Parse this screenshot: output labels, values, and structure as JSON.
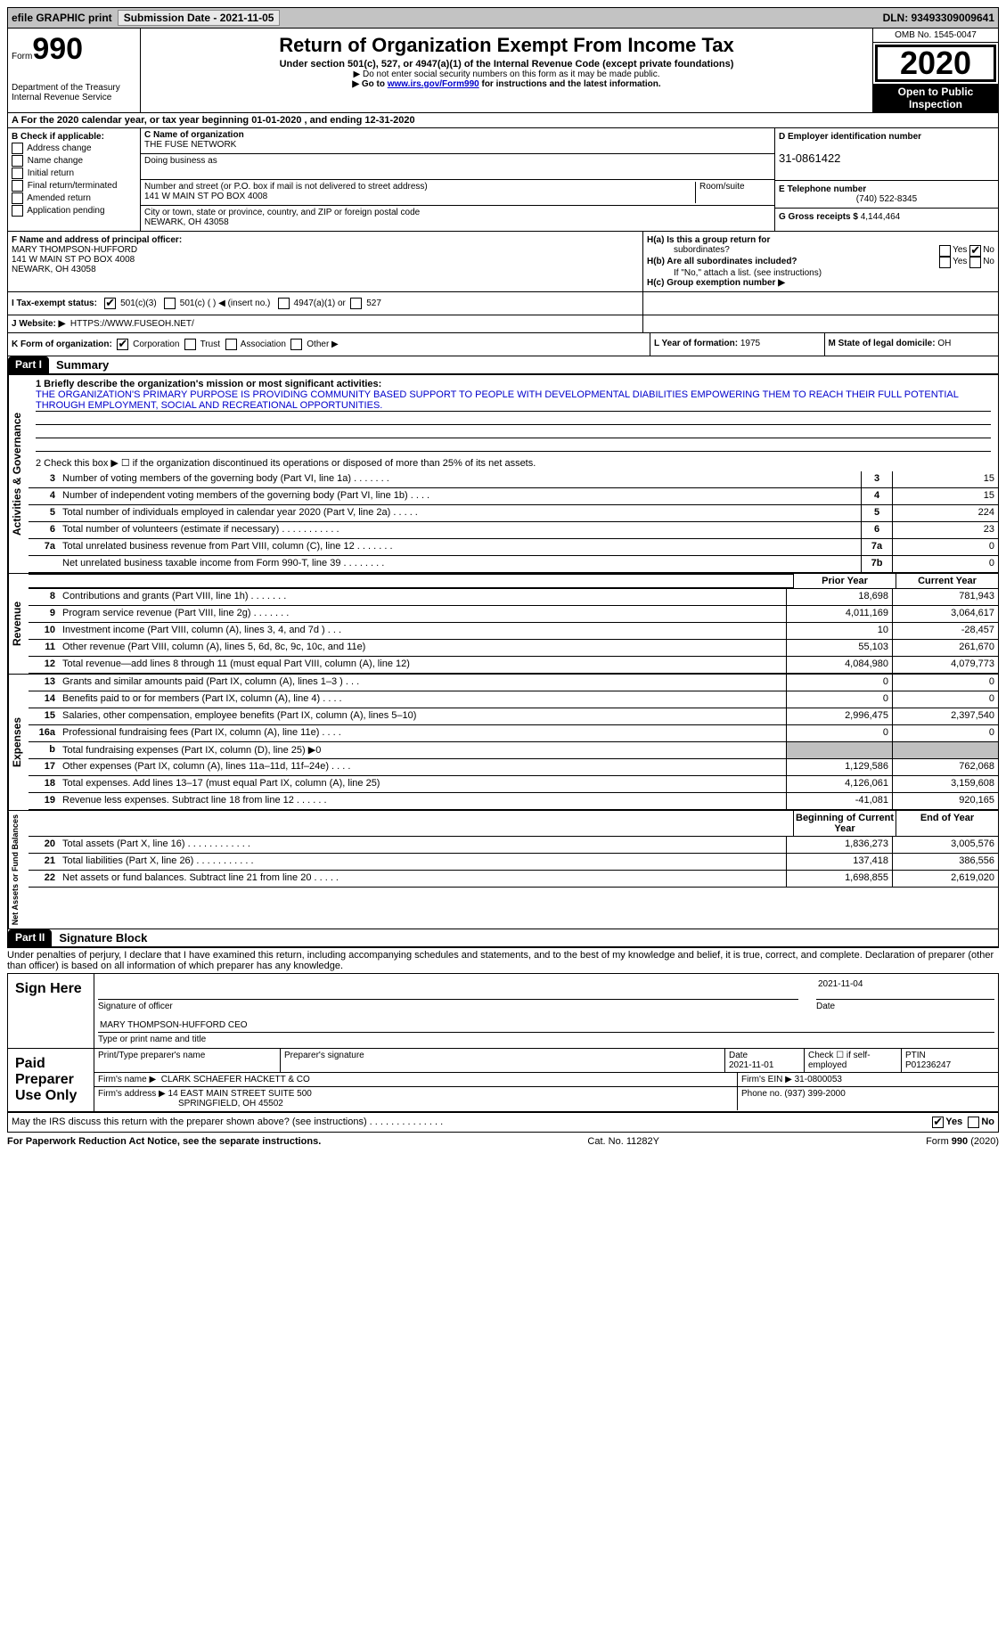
{
  "top_bar": {
    "efile_label": "efile GRAPHIC print",
    "submission_label": "Submission Date - 2021-11-05",
    "dln_label": "DLN: 93493309009641"
  },
  "header": {
    "form_word": "Form",
    "form_number": "990",
    "dept": "Department of the Treasury",
    "irs": "Internal Revenue Service",
    "title": "Return of Organization Exempt From Income Tax",
    "subtitle": "Under section 501(c), 527, or 4947(a)(1) of the Internal Revenue Code (except private foundations)",
    "note1": "▶ Do not enter social security numbers on this form as it may be made public.",
    "note2_prefix": "▶ Go to ",
    "note2_link": "www.irs.gov/Form990",
    "note2_suffix": " for instructions and the latest information.",
    "omb": "OMB No. 1545-0047",
    "year": "2020",
    "inspection1": "Open to Public",
    "inspection2": "Inspection"
  },
  "section_a": "A For the 2020 calendar year, or tax year beginning 01-01-2020   , and ending 12-31-2020",
  "col_b": {
    "header": "B Check if applicable:",
    "items": [
      "Address change",
      "Name change",
      "Initial return",
      "Final return/terminated",
      "Amended return",
      "Application pending"
    ]
  },
  "col_c": {
    "name_label": "C Name of organization",
    "name_value": "THE FUSE NETWORK",
    "dba_label": "Doing business as",
    "dba_value": "",
    "street_label": "Number and street (or P.O. box if mail is not delivered to street address)",
    "street_value": "141 W MAIN ST PO BOX 4008",
    "room_label": "Room/suite",
    "city_label": "City or town, state or province, country, and ZIP or foreign postal code",
    "city_value": "NEWARK, OH  43058"
  },
  "col_d": {
    "ein_label": "D Employer identification number",
    "ein_value": "31-0861422",
    "phone_label": "E Telephone number",
    "phone_value": "(740) 522-8345",
    "gross_label": "G Gross receipts $",
    "gross_value": "4,144,464"
  },
  "section_f": {
    "label": "F Name and address of principal officer:",
    "name": "MARY THOMPSON-HUFFORD",
    "addr1": "141 W MAIN ST PO BOX 4008",
    "addr2": "NEWARK, OH  43058"
  },
  "section_h": {
    "ha_label": "H(a)  Is this a group return for",
    "ha_sub": "subordinates?",
    "hb_label": "H(b)  Are all subordinates included?",
    "hb_note": "If \"No,\" attach a list. (see instructions)",
    "hc_label": "H(c)  Group exemption number ▶",
    "yes": "Yes",
    "no": "No"
  },
  "section_i": {
    "label": "I   Tax-exempt status:",
    "o1": "501(c)(3)",
    "o2": "501(c) (  ) ◀ (insert no.)",
    "o3": "4947(a)(1) or",
    "o4": "527"
  },
  "section_j": {
    "label": "J   Website: ▶",
    "value": "HTTPS://WWW.FUSEOH.NET/"
  },
  "section_k": {
    "label": "K Form of organization:",
    "o1": "Corporation",
    "o2": "Trust",
    "o3": "Association",
    "o4": "Other ▶"
  },
  "section_l": {
    "label": "L Year of formation:",
    "value": "1975"
  },
  "section_m": {
    "label": "M State of legal domicile:",
    "value": "OH"
  },
  "part1": {
    "tab": "Part I",
    "title": "Summary",
    "line1_label": "1   Briefly describe the organization's mission or most significant activities:",
    "line1_text": "THE ORGANIZATION'S PRIMARY PURPOSE IS PROVIDING COMMUNITY BASED SUPPORT TO PEOPLE WITH DEVELOPMENTAL DIABILITIES EMPOWERING THEM TO REACH THEIR FULL POTENTIAL THROUGH EMPLOYMENT, SOCIAL AND RECREATIONAL OPPORTUNITIES.",
    "line2": "2    Check this box ▶ ☐  if the organization discontinued its operations or disposed of more than 25% of its net assets.",
    "governance_label": "Activities & Governance",
    "revenue_label": "Revenue",
    "expenses_label": "Expenses",
    "netassets_label": "Net Assets or Fund Balances",
    "prior_year_hdr": "Prior Year",
    "current_year_hdr": "Current Year",
    "begin_year_hdr": "Beginning of Current Year",
    "end_year_hdr": "End of Year",
    "lines_single": [
      {
        "n": "3",
        "d": "Number of voting members of the governing body (Part VI, line 1a)   .    .    .    .    .    .    .",
        "box": "3",
        "v": "15"
      },
      {
        "n": "4",
        "d": "Number of independent voting members of the governing body (Part VI, line 1b)   .    .    .    .",
        "box": "4",
        "v": "15"
      },
      {
        "n": "5",
        "d": "Total number of individuals employed in calendar year 2020 (Part V, line 2a)   .    .    .    .    .",
        "box": "5",
        "v": "224"
      },
      {
        "n": "6",
        "d": "Total number of volunteers (estimate if necessary)   .    .    .    .    .    .    .    .    .    .    .",
        "box": "6",
        "v": "23"
      },
      {
        "n": "7a",
        "d": "Total unrelated business revenue from Part VIII, column (C), line 12   .    .    .    .    .    .    .",
        "box": "7a",
        "v": "0"
      },
      {
        "n": "",
        "d": "Net unrelated business taxable income from Form 990-T, line 39   .    .    .    .    .    .    .    .",
        "box": "7b",
        "v": "0"
      }
    ],
    "lines_revenue": [
      {
        "n": "8",
        "d": "Contributions and grants (Part VIII, line 1h)   .    .    .    .    .    .    .",
        "p": "18,698",
        "c": "781,943"
      },
      {
        "n": "9",
        "d": "Program service revenue (Part VIII, line 2g)   .    .    .    .    .    .    .",
        "p": "4,011,169",
        "c": "3,064,617"
      },
      {
        "n": "10",
        "d": "Investment income (Part VIII, column (A), lines 3, 4, and 7d )   .    .    .",
        "p": "10",
        "c": "-28,457"
      },
      {
        "n": "11",
        "d": "Other revenue (Part VIII, column (A), lines 5, 6d, 8c, 9c, 10c, and 11e)",
        "p": "55,103",
        "c": "261,670"
      },
      {
        "n": "12",
        "d": "Total revenue—add lines 8 through 11 (must equal Part VIII, column (A), line 12)",
        "p": "4,084,980",
        "c": "4,079,773"
      }
    ],
    "lines_expenses": [
      {
        "n": "13",
        "d": "Grants and similar amounts paid (Part IX, column (A), lines 1–3 )   .    .    .",
        "p": "0",
        "c": "0"
      },
      {
        "n": "14",
        "d": "Benefits paid to or for members (Part IX, column (A), line 4)   .    .    .    .",
        "p": "0",
        "c": "0"
      },
      {
        "n": "15",
        "d": "Salaries, other compensation, employee benefits (Part IX, column (A), lines 5–10)",
        "p": "2,996,475",
        "c": "2,397,540"
      },
      {
        "n": "16a",
        "d": "Professional fundraising fees (Part IX, column (A), line 11e)   .    .    .    .",
        "p": "0",
        "c": "0"
      },
      {
        "n": "b",
        "d": "Total fundraising expenses (Part IX, column (D), line 25) ▶0",
        "p": "",
        "c": "",
        "shaded": true
      },
      {
        "n": "17",
        "d": "Other expenses (Part IX, column (A), lines 11a–11d, 11f–24e)   .    .    .    .",
        "p": "1,129,586",
        "c": "762,068"
      },
      {
        "n": "18",
        "d": "Total expenses. Add lines 13–17 (must equal Part IX, column (A), line 25)",
        "p": "4,126,061",
        "c": "3,159,608"
      },
      {
        "n": "19",
        "d": "Revenue less expenses. Subtract line 18 from line 12   .    .    .    .    .    .",
        "p": "-41,081",
        "c": "920,165"
      }
    ],
    "lines_netassets": [
      {
        "n": "20",
        "d": "Total assets (Part X, line 16)   .    .    .    .    .    .    .    .    .    .    .    .",
        "p": "1,836,273",
        "c": "3,005,576"
      },
      {
        "n": "21",
        "d": "Total liabilities (Part X, line 26)   .    .    .    .    .    .    .    .    .    .    .",
        "p": "137,418",
        "c": "386,556"
      },
      {
        "n": "22",
        "d": "Net assets or fund balances. Subtract line 21 from line 20   .    .    .    .    .",
        "p": "1,698,855",
        "c": "2,619,020"
      }
    ]
  },
  "part2": {
    "tab": "Part II",
    "title": "Signature Block",
    "declaration": "Under penalties of perjury, I declare that I have examined this return, including accompanying schedules and statements, and to the best of my knowledge and belief, it is true, correct, and complete. Declaration of preparer (other than officer) is based on all information of which preparer has any knowledge.",
    "sign_here": "Sign Here",
    "sig_officer_label": "Signature of officer",
    "sig_date": "2021-11-04",
    "date_label": "Date",
    "officer_name": "MARY THOMPSON-HUFFORD CEO",
    "officer_name_label": "Type or print name and title",
    "paid_label": "Paid Preparer Use Only",
    "prep_name_label": "Print/Type preparer's name",
    "prep_sig_label": "Preparer's signature",
    "prep_date_label": "Date",
    "prep_date": "2021-11-01",
    "prep_check_label": "Check ☐ if self-employed",
    "ptin_label": "PTIN",
    "ptin": "P01236247",
    "firm_name_label": "Firm's name    ▶",
    "firm_name": "CLARK SCHAEFER HACKETT & CO",
    "firm_ein_label": "Firm's EIN ▶",
    "firm_ein": "31-0800053",
    "firm_addr_label": "Firm's address ▶",
    "firm_addr1": "14 EAST MAIN STREET SUITE 500",
    "firm_addr2": "SPRINGFIELD, OH  45502",
    "phone_label": "Phone no.",
    "phone": "(937) 399-2000",
    "discuss": "May the IRS discuss this return with the preparer shown above? (see instructions)   .    .    .    .    .    .    .    .    .    .    .    .    .    .",
    "yes": "Yes",
    "no": "No"
  },
  "footer": {
    "left": "For Paperwork Reduction Act Notice, see the separate instructions.",
    "mid": "Cat. No. 11282Y",
    "right": "Form 990 (2020)"
  }
}
